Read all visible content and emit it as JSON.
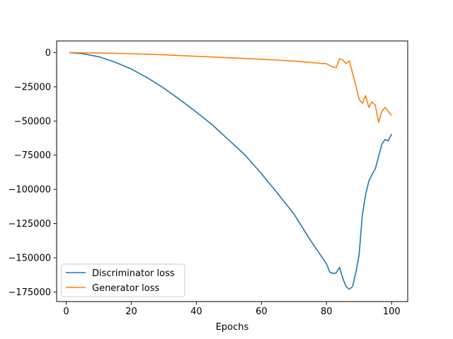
{
  "chart_data": {
    "type": "line",
    "title": "",
    "xlabel": "Epochs",
    "ylabel": "",
    "xlim": [
      -2.95,
      104.95
    ],
    "ylim": [
      -182000,
      8500
    ],
    "grid": false,
    "legend_position": "lower-left",
    "x_ticks": [
      {
        "value": 0,
        "label": "0"
      },
      {
        "value": 20,
        "label": "20"
      },
      {
        "value": 40,
        "label": "40"
      },
      {
        "value": 60,
        "label": "60"
      },
      {
        "value": 80,
        "label": "80"
      },
      {
        "value": 100,
        "label": "100"
      }
    ],
    "y_ticks": [
      {
        "value": 0,
        "label": "0"
      },
      {
        "value": -25000,
        "label": "−25000"
      },
      {
        "value": -50000,
        "label": "−50000"
      },
      {
        "value": -75000,
        "label": "−75000"
      },
      {
        "value": -100000,
        "label": "−100000"
      },
      {
        "value": -125000,
        "label": "−125000"
      },
      {
        "value": -150000,
        "label": "−150000"
      },
      {
        "value": -175000,
        "label": "−175000"
      }
    ],
    "series": [
      {
        "name": "Discriminator loss",
        "color": "#1f77b4",
        "x": [
          1,
          5,
          10,
          15,
          20,
          25,
          30,
          35,
          40,
          45,
          50,
          53,
          55,
          60,
          65,
          70,
          75,
          80,
          81,
          82,
          83,
          84,
          85,
          86,
          87,
          88,
          89,
          90,
          91,
          92,
          93,
          94,
          95,
          96,
          97,
          98,
          99,
          100
        ],
        "values": [
          0,
          -800,
          -3000,
          -7000,
          -12000,
          -18500,
          -26000,
          -34500,
          -43500,
          -53000,
          -64000,
          -70500,
          -75000,
          -88500,
          -103000,
          -118000,
          -137000,
          -154500,
          -160500,
          -161500,
          -161000,
          -157000,
          -165000,
          -171000,
          -173000,
          -171000,
          -161000,
          -148000,
          -119000,
          -104000,
          -94000,
          -89000,
          -85000,
          -76000,
          -67000,
          -63500,
          -64500,
          -59500
        ]
      },
      {
        "name": "Generator loss",
        "color": "#ff7f0e",
        "x": [
          1,
          5,
          10,
          15,
          20,
          25,
          30,
          35,
          40,
          45,
          50,
          55,
          60,
          65,
          70,
          75,
          78,
          80,
          81,
          82,
          83,
          84,
          85,
          86,
          87,
          88,
          89,
          90,
          91,
          92,
          93,
          94,
          95,
          96,
          97,
          98,
          99,
          100
        ],
        "values": [
          0,
          -150,
          -300,
          -500,
          -800,
          -1200,
          -1600,
          -2200,
          -2700,
          -3200,
          -3800,
          -4300,
          -4900,
          -5500,
          -6200,
          -7200,
          -7800,
          -8200,
          -9500,
          -10500,
          -11000,
          -4500,
          -5500,
          -8000,
          -6000,
          -15000,
          -24000,
          -34000,
          -37000,
          -31500,
          -40000,
          -36000,
          -38500,
          -51000,
          -43000,
          -40000,
          -43000,
          -46000
        ]
      }
    ]
  }
}
